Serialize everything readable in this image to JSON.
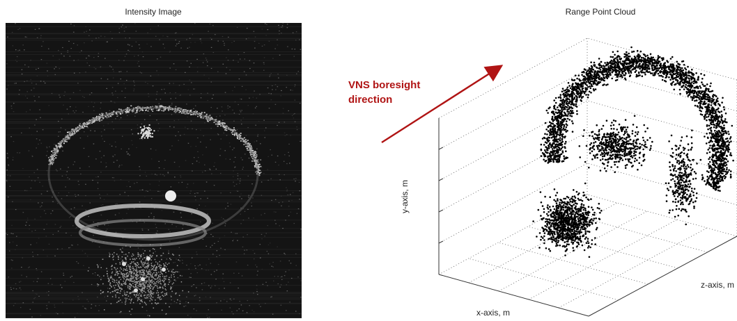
{
  "left_panel": {
    "title": "Intensity Image"
  },
  "right_panel": {
    "title": "Range Point Cloud",
    "x_label": "x-axis, m",
    "y_label": "y-axis, m",
    "z_label": "z-axis, m"
  },
  "annotation": "VNS boresight direction"
}
